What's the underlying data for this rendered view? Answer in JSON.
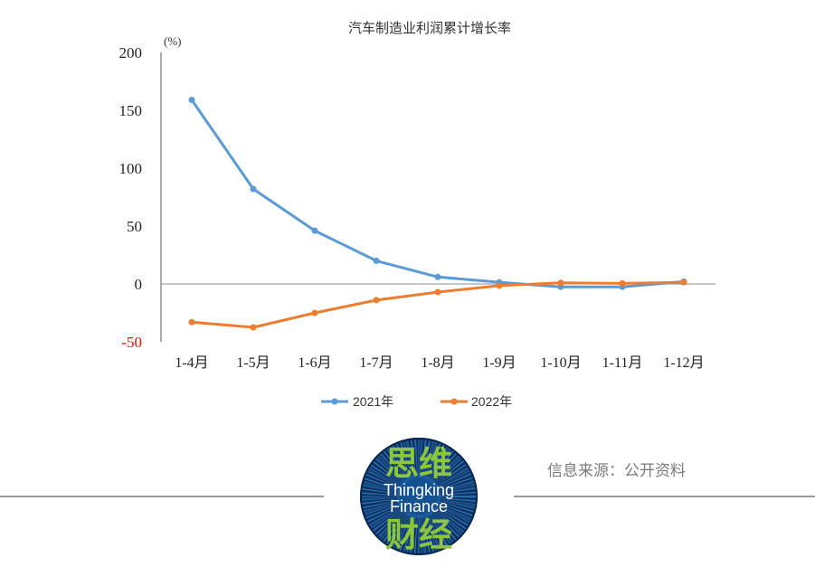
{
  "chart_data": {
    "type": "line",
    "title": "汽车制造业利润累计增长率",
    "y_unit": "(%)",
    "categories": [
      "1-4月",
      "1-5月",
      "1-6月",
      "1-7月",
      "1-8月",
      "1-9月",
      "1-10月",
      "1-11月",
      "1-12月"
    ],
    "series": [
      {
        "name": "2021年",
        "color": "#5B9BD5",
        "values": [
          159,
          82,
          46,
          20,
          6,
          1.5,
          -2.5,
          -2.5,
          2
        ]
      },
      {
        "name": "2022年",
        "color": "#ED7D31",
        "values": [
          -33,
          -37.5,
          -25,
          -14,
          -7,
          -1.5,
          1,
          0.5,
          1.5
        ]
      }
    ],
    "ylim": [
      -50,
      200
    ],
    "yticks": [
      200,
      150,
      100,
      50,
      0,
      -50
    ],
    "negative_tick_color": "#FF0000",
    "grid": false,
    "legend": "bottom"
  },
  "source": "信息来源：公开资料",
  "logo": {
    "top": "思维",
    "line1": "Thingking",
    "line2": "Finance",
    "bottom": "财经",
    "background_color": "#0B2F63",
    "accent_color": "#8CC63E"
  }
}
